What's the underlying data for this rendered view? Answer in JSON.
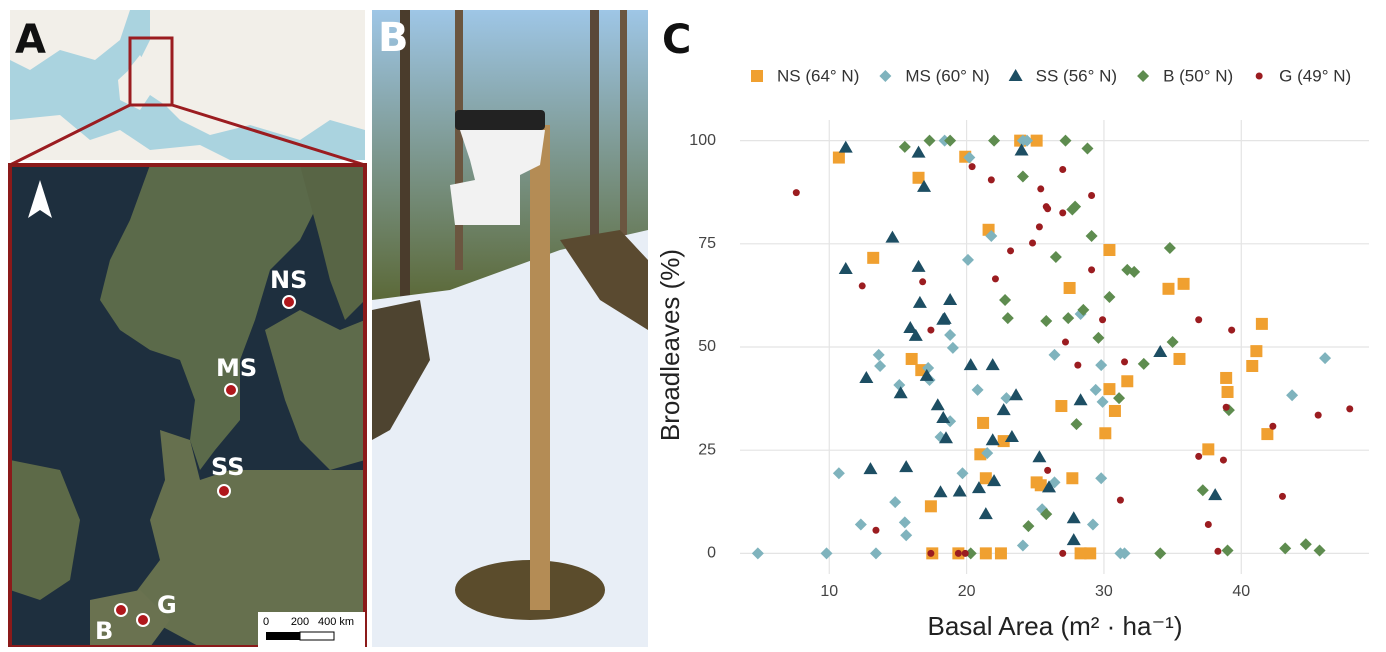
{
  "panel_labels": [
    "A",
    "B",
    "C"
  ],
  "map": {
    "sites": [
      "NS",
      "MS",
      "SS",
      "B",
      "G"
    ],
    "scale_labels": [
      "0",
      "200",
      "400 km"
    ]
  },
  "chart_data": {
    "type": "scatter",
    "x_label": "Basal Area (m² · ha⁻¹)",
    "y_label": "Broadleaves (%)",
    "xlim": [
      3.5,
      49.3
    ],
    "ylim": [
      -5,
      105
    ],
    "xticks": [
      10,
      20,
      30,
      40
    ],
    "yticks": [
      0,
      25,
      50,
      75,
      100
    ],
    "grid": true,
    "legend": "top",
    "series": [
      {
        "name": "NS (64° N)",
        "color": "#f0a030",
        "marker": "square",
        "x": [
          10.7,
          13.2,
          16.5,
          19.9,
          16.0,
          16.7,
          17.4,
          21.6,
          23.9,
          25.1,
          22.7,
          21.2,
          21.0,
          21.4,
          25.1,
          25.4,
          27.7,
          27.5,
          26.9,
          30.4,
          30.4,
          30.8,
          30.1,
          31.7,
          34.7,
          35.8,
          35.5,
          37.6,
          38.9,
          39.0,
          40.8,
          41.1,
          41.5,
          41.9,
          17.5,
          19.4,
          21.4,
          22.5,
          28.3,
          29.0
        ],
        "values": [
          95.9,
          71.6,
          91,
          96.1,
          47.1,
          44.4,
          11.4,
          78.4,
          100,
          100,
          27.2,
          31.6,
          24.0,
          18.2,
          17.2,
          16.5,
          18.2,
          64.3,
          35.7,
          73.5,
          39.8,
          34.5,
          29.1,
          41.7,
          64.1,
          65.3,
          47.1,
          25.2,
          42.5,
          39.1,
          45.4,
          49.0,
          55.6,
          28.9,
          0,
          0,
          0,
          0,
          0,
          0
        ]
      },
      {
        "name": "MS (60° N)",
        "color": "#7fb3bd",
        "marker": "diamond",
        "x": [
          4.8,
          9.8,
          10.7,
          12.3,
          13.4,
          13.6,
          13.7,
          15.1,
          15.5,
          15.6,
          14.8,
          17.2,
          17.3,
          18.4,
          18.8,
          19.0,
          19.7,
          20.1,
          20.2,
          21.8,
          20.8,
          21.5,
          22.9,
          24.1,
          24.1,
          24.4,
          25.5,
          26.4,
          26.4,
          28.3,
          29.2,
          29.4,
          29.8,
          29.8,
          31.2,
          31.5,
          29.9,
          43.7,
          46.1,
          18.1,
          18.8
        ],
        "values": [
          0,
          0,
          19.4,
          7.0,
          0,
          48.1,
          45.4,
          40.8,
          7.5,
          4.4,
          12.4,
          44.9,
          42,
          100,
          52.9,
          49.8,
          19.4,
          71.1,
          95.9,
          76.9,
          39.6,
          24.3,
          37.6,
          1.9,
          100,
          100,
          10.7,
          17.2,
          48.1,
          58.0,
          7.0,
          39.6,
          45.6,
          18.2,
          0,
          0,
          36.7,
          38.3,
          47.3,
          28.2,
          32.0
        ]
      },
      {
        "name": "SS (56° N)",
        "color": "#1d4e63",
        "marker": "triangle",
        "x": [
          11.2,
          16.5,
          16.9,
          14.6,
          11.2,
          16.5,
          16.6,
          18.8,
          15.9,
          16.3,
          18.3,
          18.4,
          12.7,
          15.2,
          17.1,
          17.9,
          18.3,
          18.5,
          20.3,
          21.9,
          23.6,
          22.7,
          23.3,
          21.9,
          13.0,
          15.6,
          22.0,
          18.1,
          19.5,
          20.9,
          21.4,
          25.3,
          26.0,
          24.0,
          28.3,
          27.8,
          27.8,
          34.1,
          38.1
        ],
        "values": [
          98.3,
          97.1,
          88.8,
          76.5,
          68.9,
          69.4,
          60.7,
          61.4,
          54.6,
          52.7,
          56.6,
          56.8,
          42.5,
          38.8,
          43.0,
          35.9,
          32.8,
          27.9,
          45.6,
          45.6,
          38.3,
          34.7,
          28.2,
          27.4,
          20.4,
          20.9,
          17.5,
          14.8,
          15.0,
          15.8,
          9.5,
          23.3,
          16.0,
          97.6,
          37.1,
          8.5,
          3.2,
          48.8,
          14.1
        ]
      },
      {
        "name": "B (50° N)",
        "color": "#5e8c4f",
        "marker": "diamond",
        "x": [
          15.5,
          17.3,
          18.8,
          22.0,
          27.2,
          28.8,
          24.1,
          27.9,
          27.7,
          29.1,
          26.5,
          31.7,
          32.2,
          34.8,
          30.4,
          22.8,
          23.0,
          25.8,
          27.4,
          28.5,
          29.6,
          32.9,
          35.0,
          31.1,
          28.0,
          39.1,
          37.2,
          24.5,
          25.8,
          34.1,
          39.0,
          43.2,
          44.7,
          45.7,
          20.3
        ],
        "values": [
          98.5,
          100,
          100,
          100,
          100,
          98.1,
          91.3,
          84.0,
          83.3,
          76.9,
          71.8,
          68.7,
          68.2,
          74.0,
          62.1,
          61.4,
          57.0,
          56.3,
          57.0,
          59.0,
          52.2,
          45.9,
          51.2,
          37.6,
          31.3,
          34.7,
          15.3,
          6.6,
          9.5,
          0,
          0.7,
          1.2,
          2.2,
          0.7,
          0
        ]
      },
      {
        "name": "G (49° N)",
        "color": "#9b1c20",
        "marker": "circle",
        "x": [
          7.6,
          12.4,
          13.4,
          16.8,
          17.4,
          17.4,
          19.4,
          19.9,
          20.4,
          21.8,
          22.1,
          23.2,
          25.4,
          25.8,
          25.9,
          27.0,
          27.0,
          29.1,
          24.8,
          25.3,
          27.2,
          29.1,
          29.9,
          28.1,
          31.2,
          31.5,
          25.9,
          27.0,
          36.9,
          39.3,
          38.9,
          36.9,
          38.7,
          37.6,
          38.3,
          42.3,
          43.0,
          45.6,
          47.9
        ],
        "values": [
          87.4,
          64.8,
          5.6,
          65.8,
          54.1,
          0,
          0,
          0,
          93.7,
          90.5,
          66.5,
          73.3,
          88.3,
          84.0,
          83.5,
          93.0,
          82.5,
          86.7,
          75.2,
          79.1,
          51.2,
          68.7,
          56.6,
          45.6,
          12.9,
          46.4,
          20.1,
          0,
          56.6,
          54.1,
          35.4,
          23.5,
          22.6,
          7.0,
          0.5,
          30.8,
          13.8,
          33.5,
          35.0
        ]
      }
    ]
  }
}
